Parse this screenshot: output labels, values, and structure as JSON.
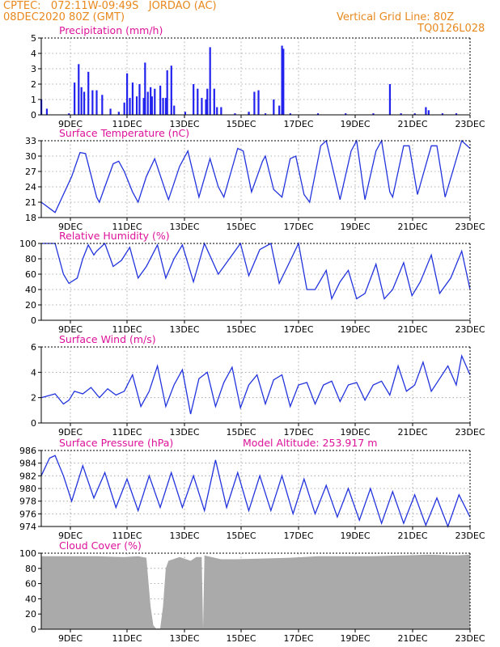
{
  "header": {
    "line1": "CPTEC:   072:11W-09:49S   JORDAO (AC)",
    "line2": "08DEC2020 80Z (GMT)",
    "right1": "Vertical Grid Line: 80Z",
    "right2": "TQ0126L028"
  },
  "colors": {
    "line": "#2233dd",
    "bar": "#2222ee",
    "cloud": "#aaaaaa",
    "title": "#dd1199",
    "header": "#e8891e",
    "grid": "#999999"
  },
  "x_tick_labels": [
    "9DEC",
    "11DEC",
    "13DEC",
    "15DEC",
    "17DEC",
    "19DEC",
    "21DEC",
    "23DEC"
  ],
  "chart_data": [
    {
      "id": "precip",
      "type": "bar",
      "title": "Precipitation (mm/h)",
      "x_unit": "days since 08DEC2020 08Z",
      "xlim": [
        0,
        15.5
      ],
      "ylim": [
        0,
        5
      ],
      "yticks": [
        "0",
        "1",
        "2",
        "3",
        "4",
        "5"
      ],
      "grid": true,
      "values": [
        [
          0.0,
          1.0
        ],
        [
          0.2,
          0.4
        ],
        [
          1.0,
          0.1
        ],
        [
          1.2,
          2.1
        ],
        [
          1.35,
          3.3
        ],
        [
          1.45,
          1.8
        ],
        [
          1.55,
          1.5
        ],
        [
          1.7,
          2.8
        ],
        [
          1.85,
          1.6
        ],
        [
          2.0,
          1.6
        ],
        [
          2.2,
          1.3
        ],
        [
          2.5,
          0.4
        ],
        [
          2.8,
          0.2
        ],
        [
          3.0,
          0.8
        ],
        [
          3.1,
          2.7
        ],
        [
          3.2,
          1.1
        ],
        [
          3.3,
          2.1
        ],
        [
          3.45,
          1.2
        ],
        [
          3.55,
          2.0
        ],
        [
          3.7,
          1.1
        ],
        [
          3.75,
          3.4
        ],
        [
          3.85,
          1.5
        ],
        [
          3.95,
          1.8
        ],
        [
          4.0,
          1.2
        ],
        [
          4.1,
          1.7
        ],
        [
          4.3,
          1.9
        ],
        [
          4.4,
          1.1
        ],
        [
          4.5,
          1.1
        ],
        [
          4.55,
          2.9
        ],
        [
          4.7,
          3.2
        ],
        [
          4.8,
          0.6
        ],
        [
          5.2,
          0.2
        ],
        [
          5.5,
          2.0
        ],
        [
          5.65,
          1.7
        ],
        [
          5.8,
          1.1
        ],
        [
          5.95,
          1.0
        ],
        [
          6.0,
          1.7
        ],
        [
          6.1,
          4.4
        ],
        [
          6.25,
          1.7
        ],
        [
          6.35,
          0.5
        ],
        [
          6.5,
          0.5
        ],
        [
          7.0,
          0.1
        ],
        [
          7.5,
          0.1
        ],
        [
          7.5,
          0.2
        ],
        [
          7.7,
          1.5
        ],
        [
          7.85,
          1.6
        ],
        [
          8.1,
          0.1
        ],
        [
          8.4,
          1.0
        ],
        [
          8.6,
          0.6
        ],
        [
          8.7,
          4.5
        ],
        [
          8.75,
          4.3
        ],
        [
          9.0,
          0.1
        ],
        [
          10.0,
          0.1
        ],
        [
          11.0,
          0.1
        ],
        [
          12.0,
          0.1
        ],
        [
          12.6,
          2.0
        ],
        [
          13.0,
          0.1
        ],
        [
          13.5,
          0.1
        ],
        [
          13.9,
          0.5
        ],
        [
          14.0,
          0.3
        ],
        [
          14.5,
          0.1
        ],
        [
          15.0,
          0.1
        ]
      ]
    },
    {
      "id": "temp",
      "type": "line",
      "title": "Surface Temperature (nC)",
      "x_unit": "days since 08DEC2020 08Z",
      "xlim": [
        0,
        15.5
      ],
      "ylim": [
        18,
        33
      ],
      "yticks": [
        "18",
        "21",
        "24",
        "27",
        "30",
        "33"
      ],
      "grid": true,
      "points": [
        [
          0.0,
          21.0
        ],
        [
          0.5,
          19.0
        ],
        [
          1.1,
          26.0
        ],
        [
          1.4,
          30.7
        ],
        [
          1.6,
          30.5
        ],
        [
          2.0,
          22.0
        ],
        [
          2.1,
          21.0
        ],
        [
          2.6,
          28.5
        ],
        [
          2.8,
          29.0
        ],
        [
          3.0,
          27.0
        ],
        [
          3.3,
          23.0
        ],
        [
          3.5,
          21.0
        ],
        [
          3.8,
          26.0
        ],
        [
          4.1,
          29.5
        ],
        [
          4.5,
          23.0
        ],
        [
          4.6,
          21.5
        ],
        [
          5.0,
          28.0
        ],
        [
          5.3,
          31.0
        ],
        [
          5.7,
          22.0
        ],
        [
          6.1,
          29.5
        ],
        [
          6.4,
          24.0
        ],
        [
          6.6,
          22.0
        ],
        [
          7.1,
          31.5
        ],
        [
          7.3,
          31.0
        ],
        [
          7.6,
          23.0
        ],
        [
          8.0,
          29.0
        ],
        [
          8.1,
          30.0
        ],
        [
          8.4,
          23.5
        ],
        [
          8.7,
          22.0
        ],
        [
          9.0,
          29.5
        ],
        [
          9.2,
          30.0
        ],
        [
          9.5,
          22.5
        ],
        [
          9.7,
          21.0
        ],
        [
          10.1,
          32.0
        ],
        [
          10.3,
          33.0
        ],
        [
          10.8,
          21.5
        ],
        [
          11.2,
          31.0
        ],
        [
          11.4,
          33.0
        ],
        [
          11.7,
          21.5
        ],
        [
          12.1,
          31.0
        ],
        [
          12.3,
          33.0
        ],
        [
          12.6,
          23.0
        ],
        [
          12.7,
          22.0
        ],
        [
          13.1,
          32.0
        ],
        [
          13.3,
          32.0
        ],
        [
          13.6,
          22.5
        ],
        [
          14.1,
          32.0
        ],
        [
          14.3,
          32.0
        ],
        [
          14.6,
          22.0
        ],
        [
          15.2,
          33.0
        ],
        [
          15.5,
          31.5
        ]
      ]
    },
    {
      "id": "rh",
      "type": "line",
      "title": "Relative Humidity (%)",
      "x_unit": "days since 08DEC2020 08Z",
      "xlim": [
        0,
        15.5
      ],
      "ylim": [
        0,
        100
      ],
      "yticks": [
        "0",
        "20",
        "40",
        "60",
        "80",
        "100"
      ],
      "grid": true,
      "points": [
        [
          0.0,
          100
        ],
        [
          0.5,
          100
        ],
        [
          0.8,
          60
        ],
        [
          1.0,
          48
        ],
        [
          1.3,
          55
        ],
        [
          1.5,
          80
        ],
        [
          1.7,
          98
        ],
        [
          1.9,
          85
        ],
        [
          2.0,
          90
        ],
        [
          2.3,
          100
        ],
        [
          2.6,
          70
        ],
        [
          2.9,
          78
        ],
        [
          3.2,
          95
        ],
        [
          3.5,
          55
        ],
        [
          3.8,
          70
        ],
        [
          4.2,
          98
        ],
        [
          4.5,
          55
        ],
        [
          4.8,
          80
        ],
        [
          5.1,
          98
        ],
        [
          5.5,
          50
        ],
        [
          5.9,
          100
        ],
        [
          6.4,
          60
        ],
        [
          6.8,
          80
        ],
        [
          7.2,
          100
        ],
        [
          7.5,
          58
        ],
        [
          7.9,
          92
        ],
        [
          8.3,
          100
        ],
        [
          8.6,
          48
        ],
        [
          8.9,
          70
        ],
        [
          9.3,
          100
        ],
        [
          9.6,
          40
        ],
        [
          9.9,
          40
        ],
        [
          10.3,
          65
        ],
        [
          10.5,
          28
        ],
        [
          10.8,
          50
        ],
        [
          11.1,
          65
        ],
        [
          11.4,
          28
        ],
        [
          11.7,
          35
        ],
        [
          12.1,
          73
        ],
        [
          12.4,
          28
        ],
        [
          12.7,
          40
        ],
        [
          13.1,
          75
        ],
        [
          13.4,
          32
        ],
        [
          13.7,
          50
        ],
        [
          14.1,
          85
        ],
        [
          14.4,
          35
        ],
        [
          14.8,
          55
        ],
        [
          15.2,
          90
        ],
        [
          15.5,
          40
        ]
      ]
    },
    {
      "id": "wind",
      "type": "line",
      "title": "Surface Wind (m/s)",
      "x_unit": "days since 08DEC2020 08Z",
      "xlim": [
        0,
        15.5
      ],
      "ylim": [
        0,
        6
      ],
      "yticks": [
        "0",
        "2",
        "4",
        "6"
      ],
      "grid": true,
      "points": [
        [
          0.0,
          2.0
        ],
        [
          0.5,
          2.3
        ],
        [
          0.8,
          1.5
        ],
        [
          1.0,
          1.8
        ],
        [
          1.2,
          2.5
        ],
        [
          1.5,
          2.3
        ],
        [
          1.8,
          2.8
        ],
        [
          2.1,
          2.0
        ],
        [
          2.4,
          2.7
        ],
        [
          2.7,
          2.2
        ],
        [
          3.0,
          2.5
        ],
        [
          3.3,
          3.8
        ],
        [
          3.6,
          1.3
        ],
        [
          3.9,
          2.5
        ],
        [
          4.2,
          4.5
        ],
        [
          4.5,
          1.3
        ],
        [
          4.8,
          3.0
        ],
        [
          5.1,
          4.2
        ],
        [
          5.4,
          0.7
        ],
        [
          5.7,
          3.5
        ],
        [
          6.0,
          4.0
        ],
        [
          6.3,
          1.3
        ],
        [
          6.6,
          3.2
        ],
        [
          6.9,
          4.4
        ],
        [
          7.2,
          1.2
        ],
        [
          7.5,
          3.0
        ],
        [
          7.8,
          3.8
        ],
        [
          8.1,
          1.5
        ],
        [
          8.4,
          3.4
        ],
        [
          8.7,
          3.8
        ],
        [
          9.0,
          1.3
        ],
        [
          9.3,
          3.0
        ],
        [
          9.6,
          3.2
        ],
        [
          9.9,
          1.5
        ],
        [
          10.2,
          3.0
        ],
        [
          10.5,
          3.3
        ],
        [
          10.8,
          1.7
        ],
        [
          11.1,
          3.0
        ],
        [
          11.4,
          3.2
        ],
        [
          11.7,
          1.8
        ],
        [
          12.0,
          3.0
        ],
        [
          12.3,
          3.3
        ],
        [
          12.6,
          2.2
        ],
        [
          12.9,
          4.5
        ],
        [
          13.2,
          2.5
        ],
        [
          13.5,
          3.0
        ],
        [
          13.8,
          4.8
        ],
        [
          14.1,
          2.5
        ],
        [
          14.4,
          3.5
        ],
        [
          14.7,
          4.5
        ],
        [
          15.0,
          3.0
        ],
        [
          15.2,
          5.3
        ],
        [
          15.5,
          3.8
        ]
      ]
    },
    {
      "id": "pressure",
      "type": "line",
      "title": "Surface Pressure (hPa)",
      "annotation": "Model Altitude: 253.917 m",
      "x_unit": "days since 08DEC2020 08Z",
      "xlim": [
        0,
        15.5
      ],
      "ylim": [
        974,
        986
      ],
      "yticks": [
        "974",
        "976",
        "978",
        "980",
        "982",
        "984",
        "986"
      ],
      "grid": true,
      "points": [
        [
          0.0,
          982.0
        ],
        [
          0.3,
          984.8
        ],
        [
          0.5,
          985.2
        ],
        [
          0.8,
          982.0
        ],
        [
          1.1,
          978.0
        ],
        [
          1.5,
          983.6
        ],
        [
          1.9,
          978.5
        ],
        [
          2.3,
          982.5
        ],
        [
          2.7,
          977.0
        ],
        [
          3.1,
          981.5
        ],
        [
          3.5,
          976.5
        ],
        [
          3.9,
          982.0
        ],
        [
          4.3,
          977.0
        ],
        [
          4.7,
          982.5
        ],
        [
          5.1,
          977.0
        ],
        [
          5.5,
          982.0
        ],
        [
          5.9,
          976.5
        ],
        [
          6.3,
          984.5
        ],
        [
          6.7,
          977.0
        ],
        [
          7.1,
          982.5
        ],
        [
          7.5,
          976.5
        ],
        [
          7.9,
          982.0
        ],
        [
          8.3,
          976.5
        ],
        [
          8.7,
          982.0
        ],
        [
          9.1,
          976.0
        ],
        [
          9.5,
          981.5
        ],
        [
          9.9,
          976.0
        ],
        [
          10.3,
          980.5
        ],
        [
          10.7,
          975.5
        ],
        [
          11.1,
          980.0
        ],
        [
          11.5,
          975.0
        ],
        [
          11.9,
          980.0
        ],
        [
          12.3,
          974.5
        ],
        [
          12.7,
          979.5
        ],
        [
          13.1,
          974.5
        ],
        [
          13.5,
          979.0
        ],
        [
          13.9,
          974.2
        ],
        [
          14.3,
          978.5
        ],
        [
          14.7,
          974.0
        ],
        [
          15.1,
          979.0
        ],
        [
          15.5,
          975.5
        ]
      ]
    },
    {
      "id": "cloud",
      "type": "area",
      "title": "Cloud Cover (%)",
      "x_unit": "days since 08DEC2020 08Z",
      "xlim": [
        0,
        15.5
      ],
      "ylim": [
        0,
        100
      ],
      "yticks": [
        "0",
        "20",
        "40",
        "60",
        "80",
        "100"
      ],
      "grid": true,
      "points": [
        [
          0.0,
          96
        ],
        [
          2.0,
          96
        ],
        [
          3.0,
          95
        ],
        [
          3.5,
          96
        ],
        [
          3.8,
          94
        ],
        [
          3.95,
          30
        ],
        [
          4.05,
          5
        ],
        [
          4.15,
          1
        ],
        [
          4.3,
          1
        ],
        [
          4.4,
          30
        ],
        [
          4.5,
          80
        ],
        [
          4.6,
          90
        ],
        [
          5.0,
          95
        ],
        [
          5.4,
          90
        ],
        [
          5.6,
          95
        ],
        [
          5.8,
          95
        ],
        [
          5.85,
          1
        ],
        [
          5.9,
          97
        ],
        [
          6.5,
          92
        ],
        [
          7.0,
          92
        ],
        [
          8.0,
          93
        ],
        [
          9.0,
          94
        ],
        [
          10.0,
          96
        ],
        [
          11.0,
          96
        ],
        [
          12.0,
          96
        ],
        [
          13.0,
          97
        ],
        [
          14.0,
          98
        ],
        [
          15.0,
          97
        ],
        [
          15.5,
          98
        ]
      ]
    }
  ]
}
